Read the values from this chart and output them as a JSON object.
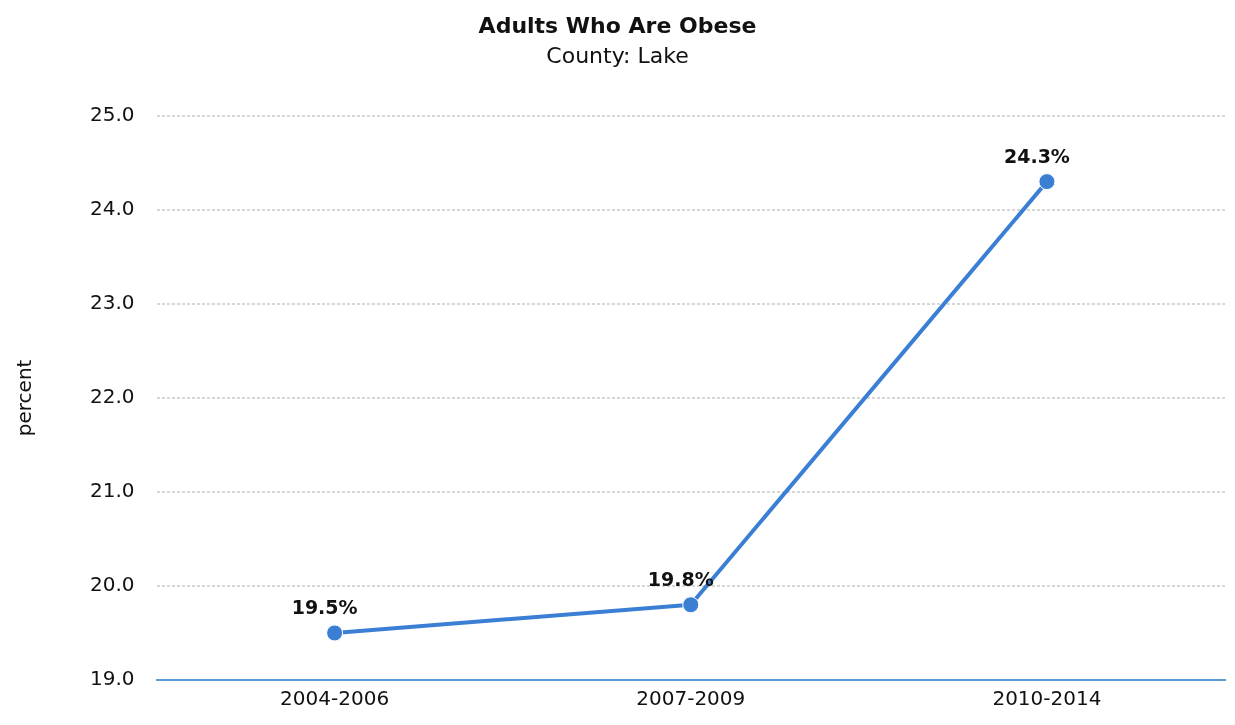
{
  "chart_data": {
    "type": "line",
    "title": "Adults Who Are Obese",
    "subtitle": "County: Lake",
    "ylabel": "percent",
    "categories": [
      "2004-2006",
      "2007-2009",
      "2010-2014"
    ],
    "series": [
      {
        "color": "#3a7fd4",
        "values": [
          19.5,
          19.8,
          24.3
        ],
        "value_labels": [
          "19.5%",
          "19.8%",
          "24.3%"
        ]
      }
    ],
    "ylim": [
      19,
      25
    ],
    "yticks": [
      {
        "value": 19,
        "label": "19.0"
      },
      {
        "value": 20,
        "label": "20.0"
      },
      {
        "value": 21,
        "label": "21.0"
      },
      {
        "value": 22,
        "label": "22.0"
      },
      {
        "value": 23,
        "label": "23.0"
      },
      {
        "value": 24,
        "label": "24.0"
      },
      {
        "value": 25,
        "label": "25.0"
      }
    ],
    "grid": "y",
    "marker": "circle",
    "line_style": "solid",
    "legend": false
  }
}
